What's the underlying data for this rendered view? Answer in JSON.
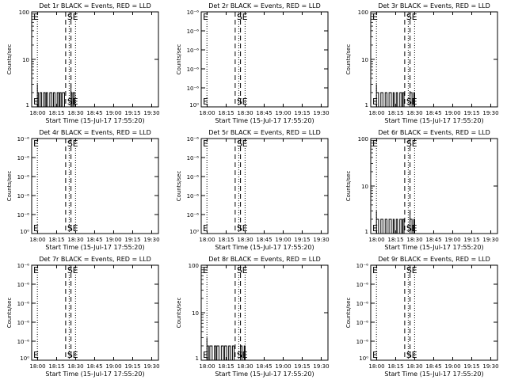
{
  "page": {
    "background": "#ffffff",
    "foreground": "#000000"
  },
  "x_tick_labels": [
    "18:00",
    "18:15",
    "18:30",
    "18:45",
    "19:00",
    "19:15",
    "19:30"
  ],
  "x_axis_label": "Start Time (15-Jul-17 17:55:20)",
  "y_axis_label": "Counts/sec",
  "chart_data": [
    {
      "type": "line",
      "title": "Det 1r  BLACK = Events, RED = LLD",
      "xlabel": "Start Time (15-Jul-17 17:55:20)",
      "ylabel": "Counts/sec",
      "x_unit": "minutes after 17:55:20",
      "xlim": [
        0,
        40
      ],
      "y_scale": "log",
      "ylim": [
        1,
        100
      ],
      "y_tick_labels": [
        "1",
        "10",
        "100"
      ],
      "markers": {
        "S": 26.8,
        "E": 31.0
      },
      "dotted_lines": [
        4.5,
        29.6,
        34.6
      ],
      "series": [
        {
          "color": "#000000",
          "segments": [
            {
              "start": 4.5,
              "end": 26.8,
              "low": 1,
              "high": 2,
              "peak": 3
            },
            {
              "start": 31.0,
              "end": 34.6,
              "low": 1,
              "high": 2,
              "peak": 3
            }
          ]
        }
      ]
    },
    {
      "type": "line",
      "title": "Det 2r  BLACK = Events, RED = LLD",
      "xlabel": "Start Time (15-Jul-17 17:55:20)",
      "ylabel": "Counts/sec",
      "x_unit": "minutes after 17:55:20",
      "xlim": [
        0,
        40
      ],
      "y_scale": "log",
      "ylim": [
        1,
        1.000005
      ],
      "y_tick_labels": [
        "10⁰",
        "10⁻⁶",
        "10⁻⁶",
        "10⁻⁶",
        "10⁻⁶",
        "10⁻⁶"
      ],
      "markers": {
        "S": 26.8,
        "E": 31.0
      },
      "dotted_lines": [
        4.5,
        29.6,
        34.6
      ],
      "series": [
        {
          "color": "#000000",
          "segments": []
        }
      ]
    },
    {
      "type": "line",
      "title": "Det 3r  BLACK = Events, RED = LLD",
      "xlabel": "Start Time (15-Jul-17 17:55:20)",
      "ylabel": "Counts/sec",
      "x_unit": "minutes after 17:55:20",
      "xlim": [
        0,
        40
      ],
      "y_scale": "log",
      "ylim": [
        1,
        100
      ],
      "y_tick_labels": [
        "1",
        "10",
        "100"
      ],
      "markers": {
        "S": 26.8,
        "E": 31.0
      },
      "dotted_lines": [
        4.5,
        29.6,
        34.6
      ],
      "series": [
        {
          "color": "#000000",
          "segments": [
            {
              "start": 4.5,
              "end": 26.8,
              "low": 1,
              "high": 2,
              "peak": 3
            },
            {
              "start": 31.0,
              "end": 34.6,
              "low": 1,
              "high": 2,
              "peak": 2
            }
          ]
        }
      ]
    },
    {
      "type": "line",
      "title": "Det 4r  BLACK = Events, RED = LLD",
      "xlabel": "Start Time (15-Jul-17 17:55:20)",
      "ylabel": "Counts/sec",
      "x_unit": "minutes after 17:55:20",
      "xlim": [
        0,
        40
      ],
      "y_scale": "log",
      "ylim": [
        1,
        1.000005
      ],
      "y_tick_labels": [
        "10⁰",
        "10⁻⁶",
        "10⁻⁶",
        "10⁻⁶",
        "10⁻⁶",
        "10⁻⁶"
      ],
      "markers": {
        "S": 26.8,
        "E": 31.0
      },
      "dotted_lines": [
        4.5,
        29.6,
        34.6
      ],
      "series": [
        {
          "color": "#000000",
          "segments": []
        }
      ]
    },
    {
      "type": "line",
      "title": "Det 5r  BLACK = Events, RED = LLD",
      "xlabel": "Start Time (15-Jul-17 17:55:20)",
      "ylabel": "Counts/sec",
      "x_unit": "minutes after 17:55:20",
      "xlim": [
        0,
        40
      ],
      "y_scale": "log",
      "ylim": [
        1,
        1.000005
      ],
      "y_tick_labels": [
        "10⁰",
        "10⁻⁶",
        "10⁻⁶",
        "10⁻⁶",
        "10⁻⁶",
        "10⁻⁶"
      ],
      "markers": {
        "S": 26.8,
        "E": 31.0
      },
      "dotted_lines": [
        4.5,
        29.6,
        34.6
      ],
      "series": [
        {
          "color": "#000000",
          "segments": []
        }
      ]
    },
    {
      "type": "line",
      "title": "Det 6r  BLACK = Events, RED = LLD",
      "xlabel": "Start Time (15-Jul-17 17:55:20)",
      "ylabel": "Counts/sec",
      "x_unit": "minutes after 17:55:20",
      "xlim": [
        0,
        40
      ],
      "y_scale": "log",
      "ylim": [
        1,
        100
      ],
      "y_tick_labels": [
        "1",
        "10",
        "100"
      ],
      "markers": {
        "S": 26.8,
        "E": 31.0
      },
      "dotted_lines": [
        4.5,
        29.6,
        34.6
      ],
      "series": [
        {
          "color": "#000000",
          "segments": [
            {
              "start": 4.5,
              "end": 26.8,
              "low": 1,
              "high": 2,
              "peak": 3
            },
            {
              "start": 31.0,
              "end": 34.6,
              "low": 1,
              "high": 2,
              "peak": 3
            }
          ]
        }
      ]
    },
    {
      "type": "line",
      "title": "Det 7r  BLACK = Events, RED = LLD",
      "xlabel": "Start Time (15-Jul-17 17:55:20)",
      "ylabel": "Counts/sec",
      "x_unit": "minutes after 17:55:20",
      "xlim": [
        0,
        40
      ],
      "y_scale": "log",
      "ylim": [
        1,
        1.000005
      ],
      "y_tick_labels": [
        "10⁰",
        "10⁻⁶",
        "10⁻⁶",
        "10⁻⁶",
        "10⁻⁶",
        "10⁻⁶"
      ],
      "markers": {
        "S": 26.8,
        "E": 31.0
      },
      "dotted_lines": [
        4.5,
        29.6,
        34.6
      ],
      "series": [
        {
          "color": "#000000",
          "segments": []
        }
      ]
    },
    {
      "type": "line",
      "title": "Det 8r  BLACK = Events, RED = LLD",
      "xlabel": "Start Time (15-Jul-17 17:55:20)",
      "ylabel": "Counts/sec",
      "x_unit": "minutes after 17:55:20",
      "xlim": [
        0,
        40
      ],
      "y_scale": "log",
      "ylim": [
        1,
        100
      ],
      "y_tick_labels": [
        "1",
        "10",
        "100"
      ],
      "markers": {
        "S": 26.8,
        "E": 31.0
      },
      "dotted_lines": [
        4.5,
        29.6,
        34.6
      ],
      "series": [
        {
          "color": "#000000",
          "segments": [
            {
              "start": 4.5,
              "end": 26.8,
              "low": 1,
              "high": 2,
              "peak": 3
            },
            {
              "start": 31.0,
              "end": 34.6,
              "low": 1,
              "high": 2,
              "peak": 2
            }
          ]
        }
      ]
    },
    {
      "type": "line",
      "title": "Det 9r  BLACK = Events, RED = LLD",
      "xlabel": "Start Time (15-Jul-17 17:55:20)",
      "ylabel": "Counts/sec",
      "x_unit": "minutes after 17:55:20",
      "xlim": [
        0,
        40
      ],
      "y_scale": "log",
      "ylim": [
        1,
        1.000005
      ],
      "y_tick_labels": [
        "10⁰",
        "10⁻⁶",
        "10⁻⁶",
        "10⁻⁶",
        "10⁻⁶",
        "10⁻⁶"
      ],
      "markers": {
        "S": 26.8,
        "E": 31.0
      },
      "dotted_lines": [
        4.5,
        29.6,
        34.6
      ],
      "series": [
        {
          "color": "#000000",
          "segments": []
        }
      ]
    }
  ]
}
